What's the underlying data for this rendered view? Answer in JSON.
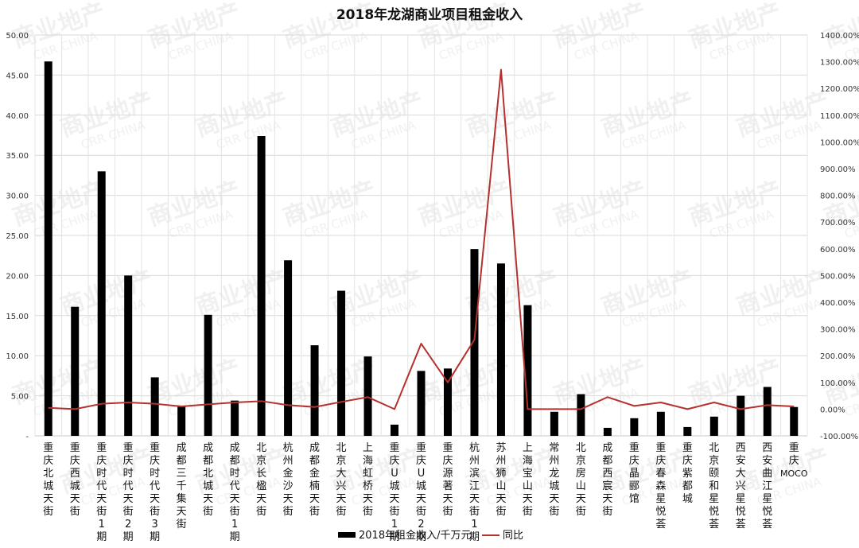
{
  "chart_data": {
    "type": "bar",
    "title": "2018年龙湖商业项目租金收入",
    "categories": [
      "重庆北城天街",
      "重庆西城天街",
      "重庆时代天街1期",
      "重庆时代天街2期",
      "重庆时代天街3期",
      "成都三千集天街",
      "成都北城天街",
      "成都时代天街1期",
      "北京长楹天街",
      "杭州金沙天街",
      "成都金楠天街",
      "北京大兴天街",
      "上海虹桥天街",
      "重庆U城天街1期",
      "重庆U城天街2期",
      "重庆源著天街",
      "杭州滨江天街1期",
      "苏州狮山天街",
      "上海宝山天街",
      "常州龙城天街",
      "北京房山天街",
      "成都西宸天街",
      "重庆晶郦馆",
      "重庆春森星悦荟",
      "重庆紫都城",
      "北京颐和星悦荟",
      "西安大兴星悦荟",
      "西安曲江星悦荟",
      "重庆MOCO"
    ],
    "series": [
      {
        "name": "2018年租金收入/千万元",
        "type": "bar",
        "axis": "left",
        "color": "#000000",
        "values": [
          46.7,
          16.1,
          33.0,
          20.0,
          7.3,
          3.7,
          15.1,
          4.4,
          37.4,
          21.9,
          11.3,
          18.1,
          9.9,
          1.4,
          8.1,
          8.4,
          23.3,
          21.5,
          16.3,
          3.0,
          5.2,
          1.0,
          2.2,
          3.0,
          1.1,
          2.4,
          5.0,
          6.1,
          3.6
        ]
      },
      {
        "name": "同比",
        "type": "line",
        "axis": "right",
        "color": "#b5312f",
        "values": [
          5,
          0,
          20,
          25,
          20,
          10,
          18,
          25,
          30,
          15,
          8,
          27,
          45,
          0,
          245,
          100,
          260,
          1270,
          0,
          0,
          0,
          45,
          12,
          25,
          0,
          25,
          0,
          15,
          10
        ]
      }
    ],
    "ylim": [
      0,
      50
    ],
    "y2lim": [
      -100,
      1400
    ],
    "y_ticks": [
      "-",
      "5.00",
      "10.00",
      "15.00",
      "20.00",
      "25.00",
      "30.00",
      "35.00",
      "40.00",
      "45.00",
      "50.00"
    ],
    "y2_ticks": [
      "-100.00%",
      "0.00%",
      "100.00%",
      "200.00%",
      "300.00%",
      "400.00%",
      "500.00%",
      "600.00%",
      "700.00%",
      "800.00%",
      "900.00%",
      "1000.00%",
      "1100.00%",
      "1200.00%",
      "1300.00%",
      "1400.00%"
    ],
    "grid": true,
    "legend_position": "bottom"
  },
  "watermark": {
    "text": "商业地产",
    "subtext": "CRR CHINA"
  }
}
